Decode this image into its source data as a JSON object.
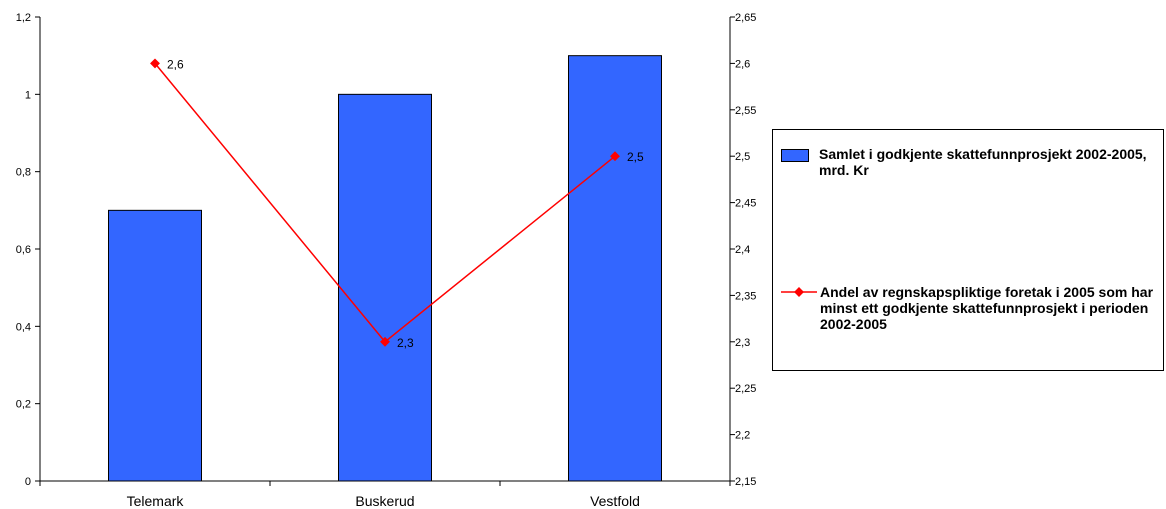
{
  "chart_data": {
    "type": "bar",
    "categories": [
      "Telemark",
      "Buskerud",
      "Vestfold"
    ],
    "series": [
      {
        "name": "Samlet i godkjente skattefunnprosjekt 2002-2005, mrd. Kr",
        "type": "bar",
        "axis": "left",
        "values": [
          0.7,
          1.0,
          1.1
        ],
        "color": "#3366ff"
      },
      {
        "name": "Andel av regnskapspliktige foretak i 2005 som har minst ett godkjente skattefunnprosjekt i perioden 2002-2005",
        "type": "line",
        "axis": "right",
        "values": [
          2.6,
          2.3,
          2.5
        ],
        "data_labels": [
          "2,6",
          "2,3",
          "2,5"
        ],
        "color": "#ff0000"
      }
    ],
    "y_left": {
      "ylim": [
        0,
        1.2
      ],
      "ticks": [
        0,
        0.2,
        0.4,
        0.6,
        0.8,
        1,
        1.2
      ],
      "tick_labels": [
        "0",
        "0,2",
        "0,4",
        "0,6",
        "0,8",
        "1",
        "1,2"
      ]
    },
    "y_right": {
      "ylim": [
        2.15,
        2.65
      ],
      "ticks": [
        2.15,
        2.2,
        2.25,
        2.3,
        2.35,
        2.4,
        2.45,
        2.5,
        2.55,
        2.6,
        2.65
      ],
      "tick_labels": [
        "2,15",
        "2,2",
        "2,25",
        "2,3",
        "2,35",
        "2,4",
        "2,45",
        "2,5",
        "2,55",
        "2,6",
        "2,65"
      ]
    },
    "grid": false,
    "legend_position": "right",
    "title": "",
    "xlabel": "",
    "ylabel": ""
  }
}
